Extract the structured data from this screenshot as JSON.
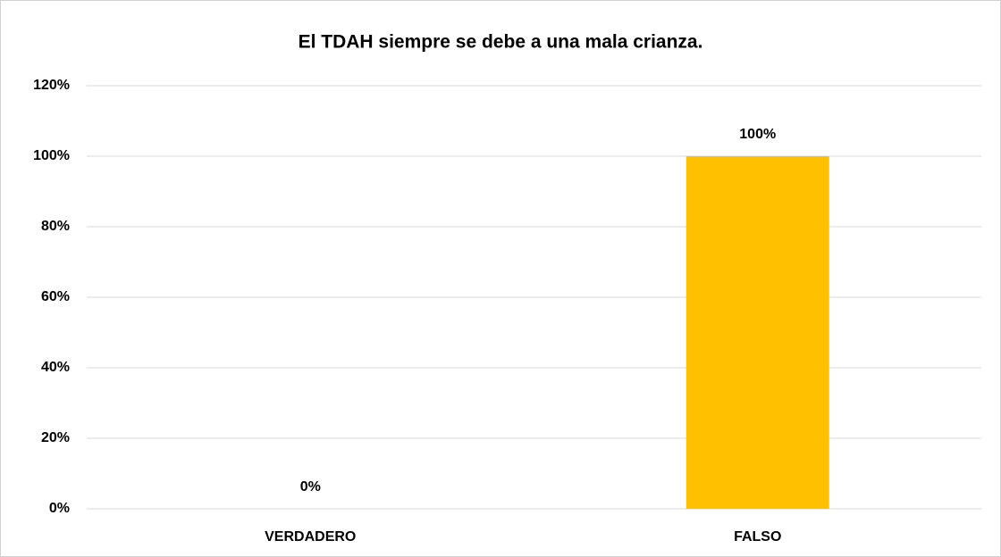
{
  "chart_data": {
    "type": "bar",
    "title": "El TDAH siempre se debe a una mala crianza.",
    "categories": [
      "VERDADERO",
      "FALSO"
    ],
    "values": [
      0,
      100
    ],
    "value_labels": [
      "0%",
      "100%"
    ],
    "color": "#ffc000",
    "ylim": [
      0,
      120
    ],
    "yticks": [
      {
        "value": 0,
        "label": "0%"
      },
      {
        "value": 20,
        "label": "20%"
      },
      {
        "value": 40,
        "label": "40%"
      },
      {
        "value": 60,
        "label": "60%"
      },
      {
        "value": 80,
        "label": "80%"
      },
      {
        "value": 100,
        "label": "100%"
      },
      {
        "value": 120,
        "label": "120%"
      }
    ],
    "grid": true
  }
}
